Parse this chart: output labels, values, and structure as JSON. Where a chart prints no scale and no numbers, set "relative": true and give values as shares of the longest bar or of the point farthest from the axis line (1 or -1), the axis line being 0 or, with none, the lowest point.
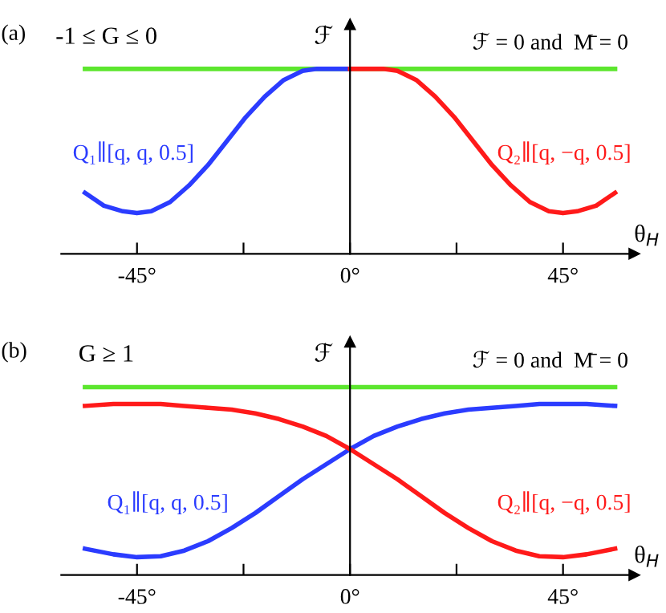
{
  "chart_data": [
    {
      "type": "line",
      "title": "(a)",
      "ylabel": "ℱ",
      "xlabel": "θ$_{H}$",
      "relative": true,
      "annotations": [
        "-1 ≤ G ≤ 0"
      ],
      "xlim": [
        -61,
        60
      ],
      "xticks": [
        {
          "value": -45,
          "label": "-45°"
        },
        {
          "value": -22.5,
          "label": null
        },
        {
          "value": 0,
          "label": "0°"
        },
        {
          "value": 22.5,
          "label": null
        },
        {
          "value": 45,
          "label": "45°"
        }
      ],
      "series": [
        {
          "name": "ℱ = 0 and  M̄ = 0",
          "color": "#5ce62e",
          "x": [
            -56,
            56
          ],
          "values": [
            1,
            1
          ]
        },
        {
          "name": "Q₁∥[q, q, 0.5]",
          "color": "#2b3cff",
          "x": [
            -56,
            -52,
            -48,
            -45,
            -42,
            -38,
            -34,
            -30,
            -26,
            -22,
            -18,
            -14,
            -10,
            -7,
            -4,
            0
          ],
          "values": [
            0.33,
            0.26,
            0.23,
            0.22,
            0.23,
            0.28,
            0.37,
            0.48,
            0.61,
            0.74,
            0.85,
            0.94,
            0.99,
            1,
            1,
            1
          ]
        },
        {
          "name": "Q₂∥[q, −q, 0.5]",
          "color": "#ff1a1a",
          "x": [
            0,
            4,
            7,
            10,
            14,
            18,
            22,
            26,
            30,
            34,
            38,
            42,
            45,
            48,
            52,
            56
          ],
          "values": [
            1,
            1,
            1,
            0.99,
            0.94,
            0.85,
            0.74,
            0.61,
            0.48,
            0.37,
            0.28,
            0.23,
            0.22,
            0.23,
            0.26,
            0.33
          ]
        }
      ]
    },
    {
      "type": "line",
      "title": "(b)",
      "ylabel": "ℱ",
      "xlabel": "θ$_{H}$",
      "relative": true,
      "annotations": [
        "G ≥ 1"
      ],
      "xlim": [
        -61,
        60
      ],
      "xticks": [
        {
          "value": -45,
          "label": "-45°"
        },
        {
          "value": -22.5,
          "label": null
        },
        {
          "value": 0,
          "label": "0°"
        },
        {
          "value": 22.5,
          "label": null
        },
        {
          "value": 45,
          "label": "45°"
        }
      ],
      "series": [
        {
          "name": "ℱ = 0 and  M̄ = 0",
          "color": "#5ce62e",
          "x": [
            -56,
            56
          ],
          "values": [
            1,
            1
          ]
        },
        {
          "name": "Q₁∥[q, q, 0.5]",
          "color": "#2b3cff",
          "x": [
            -56,
            -50,
            -45,
            -40,
            -35,
            -30,
            -25,
            -20,
            -15,
            -10,
            -5,
            0,
            5,
            10,
            15,
            20,
            25,
            30,
            35,
            40,
            45,
            50,
            56
          ],
          "values": [
            0.14,
            0.11,
            0.095,
            0.1,
            0.13,
            0.18,
            0.25,
            0.33,
            0.42,
            0.51,
            0.59,
            0.67,
            0.74,
            0.79,
            0.83,
            0.86,
            0.88,
            0.89,
            0.9,
            0.91,
            0.91,
            0.91,
            0.9
          ]
        },
        {
          "name": "Q₂∥[q, −q, 0.5]",
          "color": "#ff1a1a",
          "x": [
            -56,
            -50,
            -45,
            -40,
            -35,
            -30,
            -25,
            -20,
            -15,
            -10,
            -5,
            0,
            5,
            10,
            15,
            20,
            25,
            30,
            35,
            40,
            45,
            50,
            56
          ],
          "values": [
            0.9,
            0.91,
            0.91,
            0.91,
            0.9,
            0.89,
            0.88,
            0.86,
            0.83,
            0.79,
            0.74,
            0.67,
            0.59,
            0.51,
            0.42,
            0.33,
            0.25,
            0.18,
            0.13,
            0.1,
            0.095,
            0.11,
            0.14
          ]
        }
      ]
    }
  ]
}
